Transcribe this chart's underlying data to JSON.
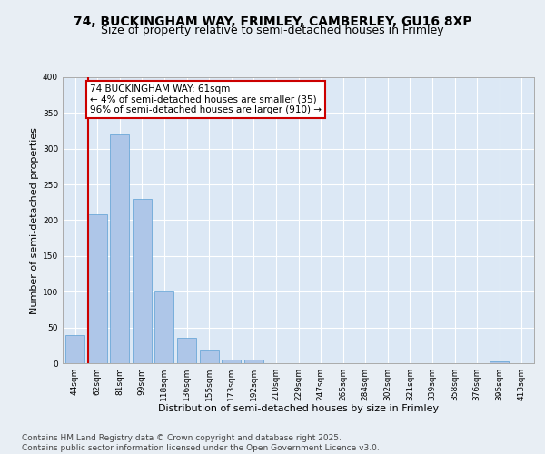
{
  "title_line1": "74, BUCKINGHAM WAY, FRIMLEY, CAMBERLEY, GU16 8XP",
  "title_line2": "Size of property relative to semi-detached houses in Frimley",
  "xlabel": "Distribution of semi-detached houses by size in Frimley",
  "ylabel": "Number of semi-detached properties",
  "categories": [
    "44sqm",
    "62sqm",
    "81sqm",
    "99sqm",
    "118sqm",
    "136sqm",
    "155sqm",
    "173sqm",
    "192sqm",
    "210sqm",
    "229sqm",
    "247sqm",
    "265sqm",
    "284sqm",
    "302sqm",
    "321sqm",
    "339sqm",
    "358sqm",
    "376sqm",
    "395sqm",
    "413sqm"
  ],
  "values": [
    40,
    208,
    320,
    230,
    100,
    35,
    18,
    5,
    5,
    0,
    0,
    0,
    0,
    0,
    0,
    0,
    0,
    0,
    0,
    2,
    0
  ],
  "bar_color": "#aec6e8",
  "bar_edge_color": "#5a9fd4",
  "annotation_text": "74 BUCKINGHAM WAY: 61sqm\n← 4% of semi-detached houses are smaller (35)\n96% of semi-detached houses are larger (910) →",
  "marker_line_color": "#cc0000",
  "annotation_box_color": "#ffffff",
  "annotation_box_edge": "#cc0000",
  "ylim": [
    0,
    400
  ],
  "yticks": [
    0,
    50,
    100,
    150,
    200,
    250,
    300,
    350,
    400
  ],
  "background_color": "#e8eef4",
  "plot_bg_color": "#dce8f5",
  "footer_text": "Contains HM Land Registry data © Crown copyright and database right 2025.\nContains public sector information licensed under the Open Government Licence v3.0.",
  "title_fontsize": 10,
  "subtitle_fontsize": 9,
  "axis_label_fontsize": 8,
  "tick_fontsize": 6.5,
  "annotation_fontsize": 7.5,
  "footer_fontsize": 6.5
}
